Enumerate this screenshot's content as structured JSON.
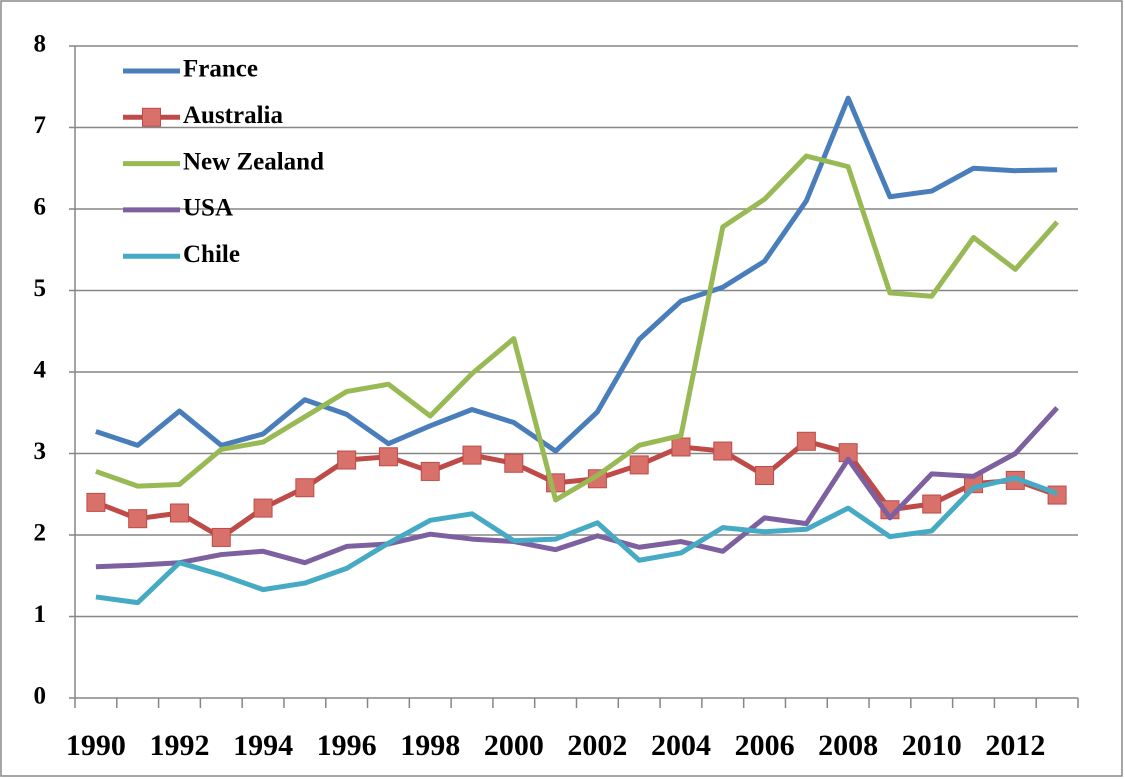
{
  "chart_data": {
    "type": "line",
    "categories": [
      "1990",
      null,
      "1992",
      null,
      "1994",
      null,
      "1996",
      null,
      "1998",
      null,
      "2000",
      null,
      "2002",
      null,
      "2004",
      null,
      "2006",
      null,
      "2008",
      null,
      "2010",
      null,
      "2012",
      null
    ],
    "series": [
      {
        "name": "France",
        "color": "#4a7ebb",
        "values": [
          3.27,
          3.1,
          3.52,
          3.1,
          3.24,
          3.66,
          3.48,
          3.12,
          3.34,
          3.54,
          3.38,
          3.03,
          3.51,
          4.4,
          4.87,
          5.04,
          5.36,
          6.1,
          7.36,
          6.15,
          6.22,
          6.5,
          6.47,
          6.48
        ]
      },
      {
        "name": "Australia",
        "color": "#be4b48",
        "marker": "square",
        "marker_color": "#d9716b",
        "values": [
          2.4,
          2.2,
          2.27,
          1.97,
          2.33,
          2.58,
          2.92,
          2.96,
          2.78,
          2.98,
          2.88,
          2.64,
          2.69,
          2.86,
          3.08,
          3.03,
          2.73,
          3.15,
          3.01,
          2.31,
          2.38,
          2.63,
          2.67,
          2.49
        ]
      },
      {
        "name": "New Zealand",
        "color": "#98b954",
        "values": [
          2.78,
          2.6,
          2.62,
          3.05,
          3.14,
          3.45,
          3.76,
          3.85,
          3.46,
          3.98,
          4.41,
          2.43,
          2.73,
          3.1,
          3.22,
          5.78,
          6.12,
          6.65,
          6.52,
          4.97,
          4.93,
          5.65,
          5.26,
          5.84
        ]
      },
      {
        "name": "USA",
        "color": "#7d60a0",
        "values": [
          1.61,
          1.63,
          1.66,
          1.76,
          1.8,
          1.66,
          1.86,
          1.89,
          2.01,
          1.95,
          1.92,
          1.82,
          1.99,
          1.85,
          1.92,
          1.8,
          2.21,
          2.14,
          2.93,
          2.21,
          2.75,
          2.72,
          3.0,
          3.56
        ]
      },
      {
        "name": "Chile",
        "color": "#46aac5",
        "values": [
          1.24,
          1.17,
          1.66,
          1.51,
          1.33,
          1.41,
          1.59,
          1.9,
          2.18,
          2.26,
          1.93,
          1.95,
          2.15,
          1.69,
          1.78,
          2.09,
          2.04,
          2.07,
          2.33,
          1.98,
          2.05,
          2.58,
          2.7,
          2.51
        ]
      }
    ],
    "ylim": [
      0,
      8
    ],
    "yticks": [
      0,
      1,
      2,
      3,
      4,
      5,
      6,
      7,
      8
    ],
    "grid": true,
    "legend": "upper left"
  }
}
